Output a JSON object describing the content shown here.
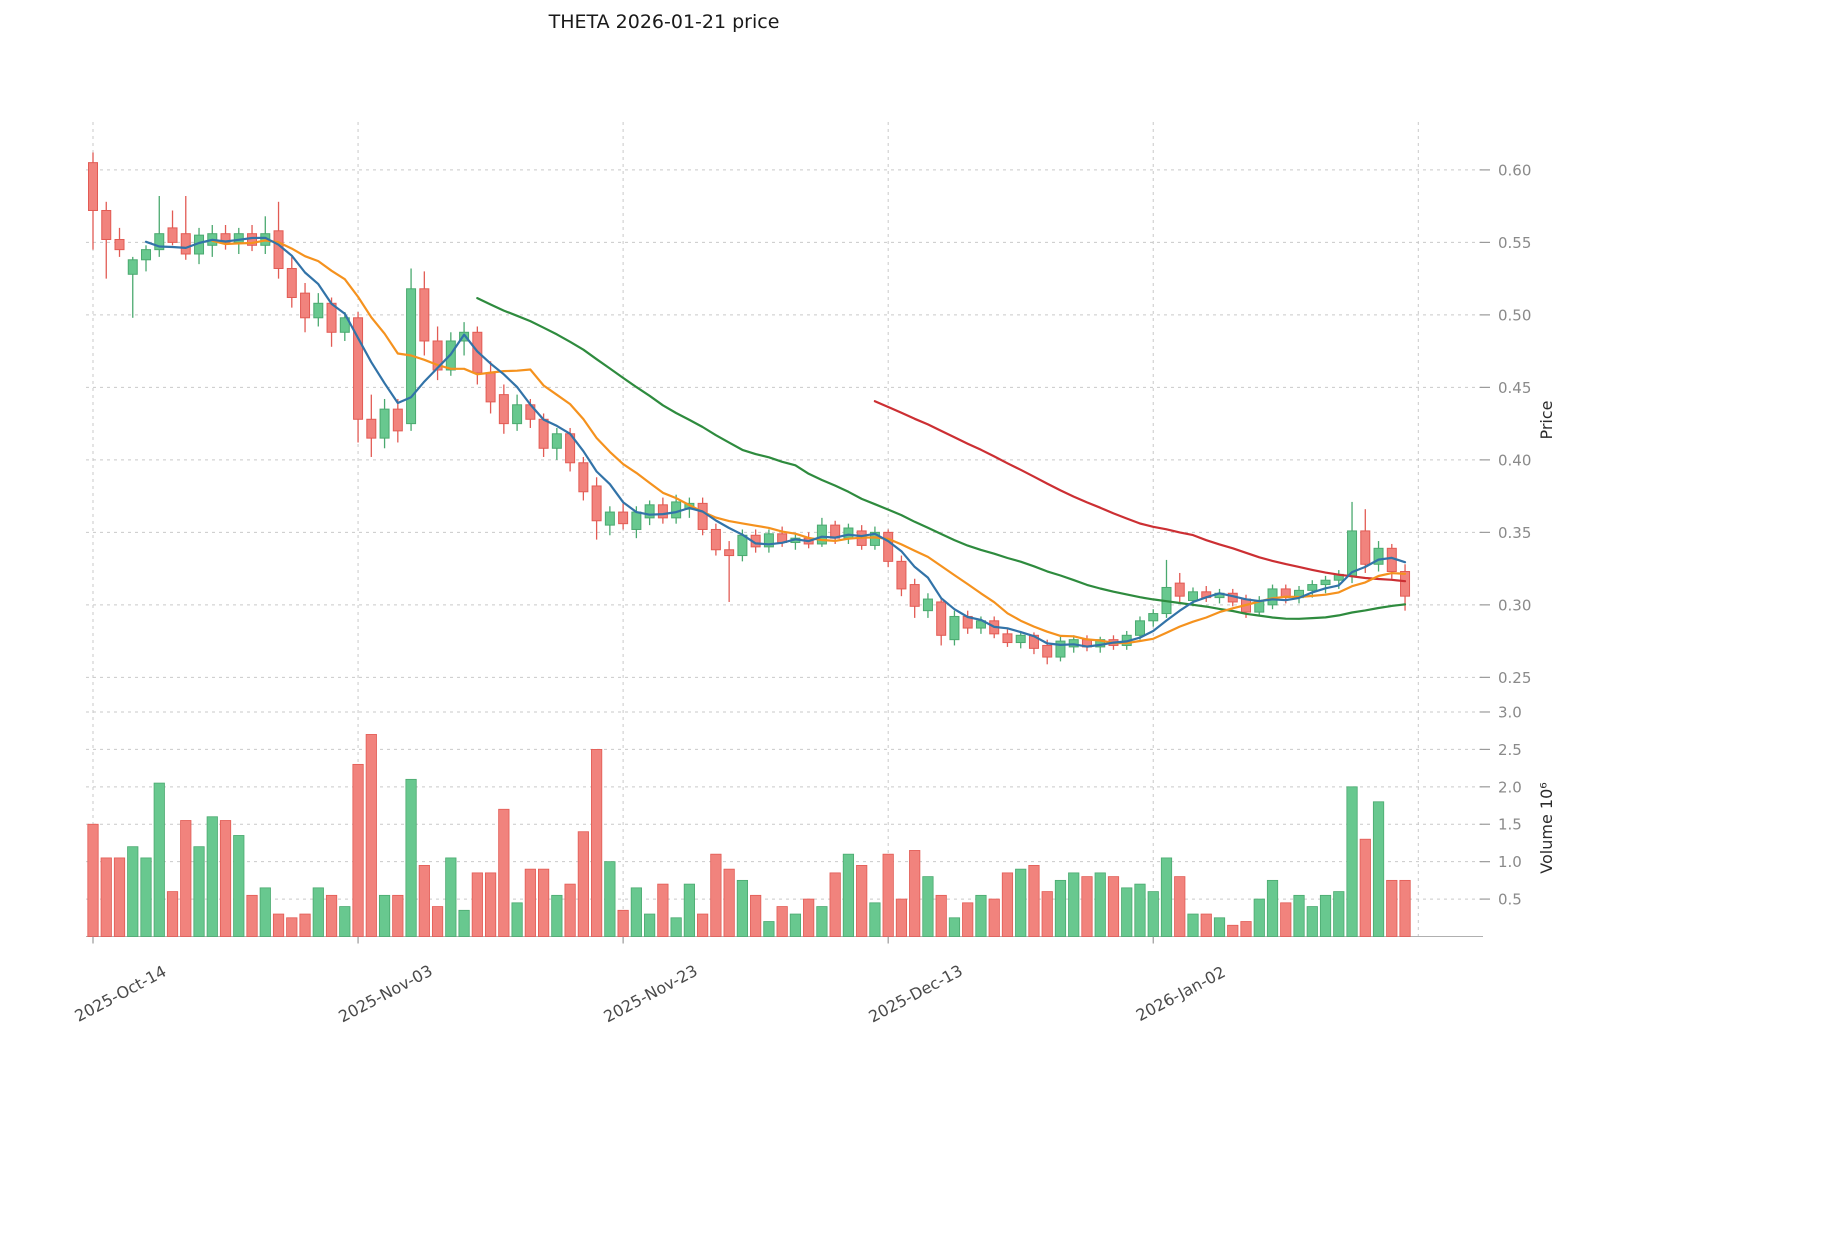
{
  "style": {
    "up_fill": "#68c88f",
    "up_edge": "#4aa96f",
    "down_fill": "#f1837d",
    "down_edge": "#e25b54",
    "grid_color": "#c9c9c9",
    "spine_color": "#b0b0b0",
    "tick_color": "#9a9a9a",
    "ma_colors": {
      "sma5": "#3273a8",
      "sma10": "#f5921e",
      "sma30": "#2e8b3e",
      "sma60": "#cc2f33"
    }
  },
  "chart_data": {
    "type": "candlestick",
    "symbol": "THETA",
    "title": "THETA  2026-01-21  price",
    "price_axis_label": "Price",
    "volume_axis_label": "Volume  10⁶",
    "date_range": [
      "2025-10-14",
      "2026-01-21"
    ],
    "price_ylim": [
      0.233,
      0.622
    ],
    "volume_ylim": [
      0,
      3.08
    ],
    "volume_unit_exponent": 6,
    "grid": true,
    "price_ticks": [
      0.25,
      0.3,
      0.35,
      0.4,
      0.45,
      0.5,
      0.55,
      0.6
    ],
    "volume_ticks": [
      0.5,
      1.0,
      1.5,
      2.0,
      2.5,
      3.0
    ],
    "x_ticks": [
      {
        "index": 0,
        "label": "2025-Oct-14"
      },
      {
        "index": 20,
        "label": "2025-Nov-03"
      },
      {
        "index": 40,
        "label": "2025-Nov-23"
      },
      {
        "index": 60,
        "label": "2025-Dec-13"
      },
      {
        "index": 80,
        "label": "2026-Jan-02"
      }
    ],
    "moving_averages": [
      {
        "name": "SMA5",
        "period": 5,
        "color_key": "sma5"
      },
      {
        "name": "SMA10",
        "period": 10,
        "color_key": "sma10"
      },
      {
        "name": "SMA30",
        "period": 30,
        "color_key": "sma30"
      },
      {
        "name": "SMA60",
        "period": 60,
        "color_key": "sma60"
      }
    ],
    "open": [
      0.605,
      0.572,
      0.552,
      0.528,
      0.538,
      0.545,
      0.56,
      0.556,
      0.542,
      0.548,
      0.556,
      0.55,
      0.556,
      0.548,
      0.558,
      0.532,
      0.515,
      0.498,
      0.508,
      0.488,
      0.498,
      0.428,
      0.415,
      0.435,
      0.425,
      0.518,
      0.482,
      0.462,
      0.482,
      0.488,
      0.46,
      0.445,
      0.425,
      0.438,
      0.428,
      0.408,
      0.418,
      0.398,
      0.382,
      0.355,
      0.364,
      0.352,
      0.36,
      0.369,
      0.36,
      0.366,
      0.37,
      0.352,
      0.338,
      0.334,
      0.348,
      0.34,
      0.349,
      0.343,
      0.346,
      0.342,
      0.355,
      0.346,
      0.351,
      0.341,
      0.35,
      0.33,
      0.314,
      0.296,
      0.302,
      0.276,
      0.292,
      0.284,
      0.289,
      0.28,
      0.274,
      0.279,
      0.272,
      0.264,
      0.271,
      0.276,
      0.271,
      0.276,
      0.272,
      0.279,
      0.289,
      0.294,
      0.315,
      0.303,
      0.309,
      0.305,
      0.308,
      0.304,
      0.295,
      0.3,
      0.311,
      0.305,
      0.31,
      0.314,
      0.317,
      0.32,
      0.351,
      0.328,
      0.339,
      0.323
    ],
    "high": [
      0.612,
      0.578,
      0.56,
      0.54,
      0.548,
      0.582,
      0.572,
      0.582,
      0.56,
      0.562,
      0.562,
      0.56,
      0.562,
      0.568,
      0.578,
      0.54,
      0.522,
      0.515,
      0.512,
      0.502,
      0.502,
      0.445,
      0.442,
      0.442,
      0.532,
      0.53,
      0.492,
      0.488,
      0.495,
      0.492,
      0.468,
      0.452,
      0.445,
      0.442,
      0.432,
      0.422,
      0.422,
      0.402,
      0.388,
      0.368,
      0.37,
      0.368,
      0.372,
      0.374,
      0.376,
      0.374,
      0.374,
      0.356,
      0.344,
      0.352,
      0.352,
      0.352,
      0.354,
      0.349,
      0.35,
      0.36,
      0.358,
      0.356,
      0.355,
      0.354,
      0.352,
      0.334,
      0.318,
      0.308,
      0.305,
      0.296,
      0.296,
      0.292,
      0.292,
      0.284,
      0.282,
      0.281,
      0.276,
      0.278,
      0.279,
      0.279,
      0.278,
      0.279,
      0.282,
      0.292,
      0.297,
      0.331,
      0.322,
      0.312,
      0.313,
      0.311,
      0.311,
      0.307,
      0.306,
      0.314,
      0.314,
      0.313,
      0.317,
      0.32,
      0.324,
      0.371,
      0.366,
      0.344,
      0.342,
      0.328
    ],
    "low": [
      0.545,
      0.525,
      0.54,
      0.498,
      0.53,
      0.54,
      0.548,
      0.538,
      0.535,
      0.54,
      0.545,
      0.542,
      0.544,
      0.542,
      0.525,
      0.505,
      0.488,
      0.492,
      0.478,
      0.482,
      0.412,
      0.402,
      0.408,
      0.412,
      0.42,
      0.472,
      0.455,
      0.458,
      0.472,
      0.452,
      0.432,
      0.418,
      0.42,
      0.422,
      0.402,
      0.4,
      0.392,
      0.372,
      0.345,
      0.348,
      0.352,
      0.346,
      0.355,
      0.356,
      0.356,
      0.36,
      0.348,
      0.334,
      0.302,
      0.33,
      0.336,
      0.336,
      0.34,
      0.338,
      0.339,
      0.34,
      0.342,
      0.342,
      0.338,
      0.338,
      0.326,
      0.306,
      0.291,
      0.291,
      0.272,
      0.272,
      0.28,
      0.28,
      0.277,
      0.271,
      0.27,
      0.266,
      0.259,
      0.261,
      0.267,
      0.268,
      0.267,
      0.269,
      0.269,
      0.276,
      0.285,
      0.291,
      0.301,
      0.299,
      0.302,
      0.301,
      0.299,
      0.291,
      0.292,
      0.297,
      0.301,
      0.301,
      0.305,
      0.308,
      0.311,
      0.315,
      0.322,
      0.323,
      0.318,
      0.296
    ],
    "close": [
      0.572,
      0.552,
      0.545,
      0.538,
      0.545,
      0.556,
      0.55,
      0.542,
      0.555,
      0.556,
      0.55,
      0.556,
      0.548,
      0.556,
      0.532,
      0.512,
      0.498,
      0.508,
      0.488,
      0.498,
      0.428,
      0.415,
      0.435,
      0.42,
      0.518,
      0.482,
      0.462,
      0.482,
      0.488,
      0.46,
      0.44,
      0.425,
      0.438,
      0.428,
      0.408,
      0.418,
      0.398,
      0.378,
      0.358,
      0.364,
      0.356,
      0.364,
      0.369,
      0.36,
      0.371,
      0.37,
      0.352,
      0.338,
      0.334,
      0.348,
      0.34,
      0.349,
      0.343,
      0.346,
      0.342,
      0.355,
      0.346,
      0.353,
      0.341,
      0.35,
      0.33,
      0.311,
      0.299,
      0.304,
      0.279,
      0.292,
      0.284,
      0.289,
      0.28,
      0.274,
      0.279,
      0.27,
      0.264,
      0.275,
      0.276,
      0.271,
      0.276,
      0.272,
      0.279,
      0.289,
      0.294,
      0.312,
      0.306,
      0.309,
      0.305,
      0.308,
      0.302,
      0.295,
      0.303,
      0.311,
      0.305,
      0.31,
      0.314,
      0.317,
      0.321,
      0.351,
      0.328,
      0.339,
      0.323,
      0.306
    ],
    "volume_millions": [
      1.5,
      1.05,
      1.05,
      1.2,
      1.05,
      2.05,
      0.6,
      1.55,
      1.2,
      1.6,
      1.55,
      1.35,
      0.55,
      0.65,
      0.3,
      0.25,
      0.3,
      0.65,
      0.55,
      0.4,
      2.3,
      2.7,
      0.55,
      0.55,
      2.1,
      0.95,
      0.4,
      1.05,
      0.35,
      0.85,
      0.85,
      1.7,
      0.45,
      0.9,
      0.9,
      0.55,
      0.7,
      1.4,
      2.5,
      1.0,
      0.35,
      0.65,
      0.3,
      0.7,
      0.25,
      0.7,
      0.3,
      1.1,
      0.9,
      0.75,
      0.55,
      0.2,
      0.4,
      0.3,
      0.5,
      0.4,
      0.85,
      1.1,
      0.95,
      0.45,
      1.1,
      0.5,
      1.15,
      0.8,
      0.55,
      0.25,
      0.45,
      0.55,
      0.5,
      0.85,
      0.9,
      0.95,
      0.6,
      0.75,
      0.85,
      0.8,
      0.85,
      0.8,
      0.65,
      0.7,
      0.6,
      1.05,
      0.8,
      0.3,
      0.3,
      0.25,
      0.15,
      0.2,
      0.5,
      0.75,
      0.45,
      0.55,
      0.4,
      0.55,
      0.6,
      2.0,
      1.3,
      1.8,
      0.75,
      0.75
    ]
  }
}
